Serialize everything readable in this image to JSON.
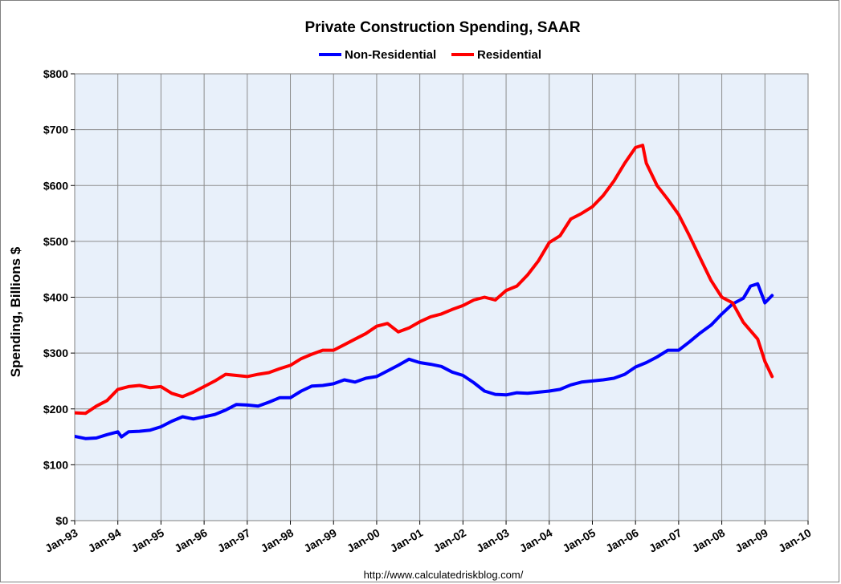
{
  "chart_data": {
    "type": "line",
    "title": "Private Construction Spending, SAAR",
    "ylabel": "Spending, Billions $",
    "xlabel": "",
    "source": "http://www.calculatedriskblog.com/",
    "ylim": [
      0,
      800
    ],
    "y_ticks": [
      0,
      100,
      200,
      300,
      400,
      500,
      600,
      700,
      800
    ],
    "y_tick_labels": [
      "$0",
      "$100",
      "$200",
      "$300",
      "$400",
      "$500",
      "$600",
      "$700",
      "$800"
    ],
    "x_range": [
      "Jan-93",
      "Jan-10"
    ],
    "x_tick_labels": [
      "Jan-93",
      "Jan-94",
      "Jan-95",
      "Jan-96",
      "Jan-97",
      "Jan-98",
      "Jan-99",
      "Jan-00",
      "Jan-01",
      "Jan-02",
      "Jan-03",
      "Jan-04",
      "Jan-05",
      "Jan-06",
      "Jan-07",
      "Jan-08",
      "Jan-09",
      "Jan-10"
    ],
    "grid": true,
    "legend_position": "top",
    "plot_background": "#e8f0fa",
    "series": [
      {
        "name": "Non-Residential",
        "color": "#0000ff",
        "x": [
          "Jan-93",
          "Apr-93",
          "Jul-93",
          "Oct-93",
          "Jan-94",
          "Feb-94",
          "Apr-94",
          "Jul-94",
          "Oct-94",
          "Jan-95",
          "Apr-95",
          "Jul-95",
          "Oct-95",
          "Jan-96",
          "Apr-96",
          "Jul-96",
          "Oct-96",
          "Jan-97",
          "Apr-97",
          "Jul-97",
          "Oct-97",
          "Jan-98",
          "Apr-98",
          "Jul-98",
          "Oct-98",
          "Jan-99",
          "Apr-99",
          "Jul-99",
          "Oct-99",
          "Jan-00",
          "Apr-00",
          "Jul-00",
          "Oct-00",
          "Jan-01",
          "Apr-01",
          "Jul-01",
          "Oct-01",
          "Jan-02",
          "Apr-02",
          "Jul-02",
          "Oct-02",
          "Jan-03",
          "Apr-03",
          "Jul-03",
          "Oct-03",
          "Jan-04",
          "Apr-04",
          "Jul-04",
          "Oct-04",
          "Jan-05",
          "Apr-05",
          "Jul-05",
          "Oct-05",
          "Jan-06",
          "Apr-06",
          "Jul-06",
          "Oct-06",
          "Jan-07",
          "Apr-07",
          "Jul-07",
          "Oct-07",
          "Jan-08",
          "Apr-08",
          "Jul-08",
          "Sep-08",
          "Nov-08",
          "Jan-09",
          "Mar-09"
        ],
        "values": [
          151,
          147,
          148,
          154,
          159,
          150,
          159,
          160,
          162,
          168,
          178,
          186,
          182,
          186,
          190,
          198,
          208,
          207,
          205,
          212,
          220,
          220,
          232,
          241,
          242,
          245,
          252,
          248,
          255,
          258,
          268,
          278,
          289,
          283,
          280,
          276,
          266,
          260,
          247,
          232,
          226,
          225,
          229,
          228,
          230,
          232,
          235,
          243,
          248,
          250,
          252,
          255,
          262,
          275,
          283,
          293,
          305,
          305,
          320,
          336,
          350,
          370,
          388,
          398,
          420,
          424,
          390,
          403
        ]
      },
      {
        "name": "Residential",
        "color": "#ff0000",
        "x": [
          "Jan-93",
          "Apr-93",
          "Jul-93",
          "Oct-93",
          "Jan-94",
          "Apr-94",
          "Jul-94",
          "Oct-94",
          "Jan-95",
          "Apr-95",
          "Jul-95",
          "Oct-95",
          "Jan-96",
          "Apr-96",
          "Jul-96",
          "Oct-96",
          "Jan-97",
          "Apr-97",
          "Jul-97",
          "Oct-97",
          "Jan-98",
          "Apr-98",
          "Jul-98",
          "Oct-98",
          "Jan-99",
          "Apr-99",
          "Jul-99",
          "Oct-99",
          "Jan-00",
          "Apr-00",
          "Jul-00",
          "Oct-00",
          "Jan-01",
          "Apr-01",
          "Jul-01",
          "Oct-01",
          "Jan-02",
          "Apr-02",
          "Jul-02",
          "Oct-02",
          "Jan-03",
          "Apr-03",
          "Jul-03",
          "Oct-03",
          "Jan-04",
          "Apr-04",
          "Jul-04",
          "Oct-04",
          "Jan-05",
          "Apr-05",
          "Jul-05",
          "Oct-05",
          "Jan-06",
          "Mar-06",
          "Apr-06",
          "Jul-06",
          "Oct-06",
          "Jan-07",
          "Apr-07",
          "Jul-07",
          "Oct-07",
          "Jan-08",
          "Apr-08",
          "Jul-08",
          "Sep-08",
          "Nov-08",
          "Jan-09",
          "Mar-09"
        ],
        "values": [
          193,
          192,
          205,
          215,
          235,
          240,
          242,
          238,
          240,
          228,
          222,
          230,
          240,
          250,
          262,
          260,
          258,
          262,
          265,
          272,
          278,
          290,
          298,
          305,
          305,
          315,
          325,
          335,
          348,
          353,
          338,
          345,
          356,
          365,
          370,
          378,
          385,
          395,
          400,
          395,
          412,
          420,
          440,
          465,
          498,
          510,
          540,
          550,
          562,
          582,
          608,
          640,
          668,
          672,
          640,
          600,
          575,
          548,
          510,
          470,
          430,
          400,
          390,
          355,
          340,
          325,
          285,
          258
        ]
      }
    ]
  }
}
